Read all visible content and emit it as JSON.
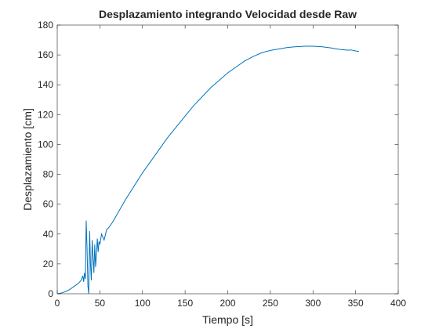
{
  "chart_data": {
    "type": "line",
    "title": "Desplazamiento integrando Velocidad desde Raw",
    "xlabel": "Tiempo [s]",
    "ylabel": "Desplazamiento [cm]",
    "xlim": [
      0,
      400
    ],
    "ylim": [
      0,
      180
    ],
    "xticks": [
      0,
      50,
      100,
      150,
      200,
      250,
      300,
      350,
      400
    ],
    "yticks": [
      0,
      20,
      40,
      60,
      80,
      100,
      120,
      140,
      160,
      180
    ],
    "grid": false,
    "line_color": "#0072BD",
    "axis_color": "#262626",
    "series": [
      {
        "x": [
          0,
          5,
          10,
          15,
          20,
          25,
          28,
          30,
          31,
          32,
          33,
          34,
          35,
          36,
          37,
          38,
          39,
          40,
          41,
          42,
          43,
          44,
          45,
          46,
          47,
          48,
          49,
          50,
          52,
          55,
          58,
          60,
          65,
          70,
          75,
          80,
          90,
          100,
          110,
          120,
          130,
          140,
          150,
          160,
          170,
          180,
          190,
          200,
          210,
          220,
          230,
          240,
          250,
          260,
          270,
          280,
          290,
          300,
          310,
          320,
          330,
          340,
          345,
          350,
          354
        ],
        "y": [
          0,
          0.5,
          1.5,
          3,
          5,
          7,
          9,
          12,
          8,
          14,
          10,
          49,
          30,
          5,
          0,
          42,
          20,
          9,
          36,
          25,
          14,
          33,
          18,
          26,
          37,
          28,
          35,
          33,
          40,
          36,
          43,
          44,
          48,
          53,
          58,
          63,
          72,
          81,
          89,
          97,
          105,
          112,
          119,
          126,
          132,
          138,
          143,
          148,
          152,
          156,
          159,
          161.5,
          163,
          164,
          165,
          165.5,
          165.8,
          165.8,
          165.5,
          164.8,
          163.8,
          163.2,
          163.3,
          162.7,
          162.3
        ]
      }
    ]
  }
}
